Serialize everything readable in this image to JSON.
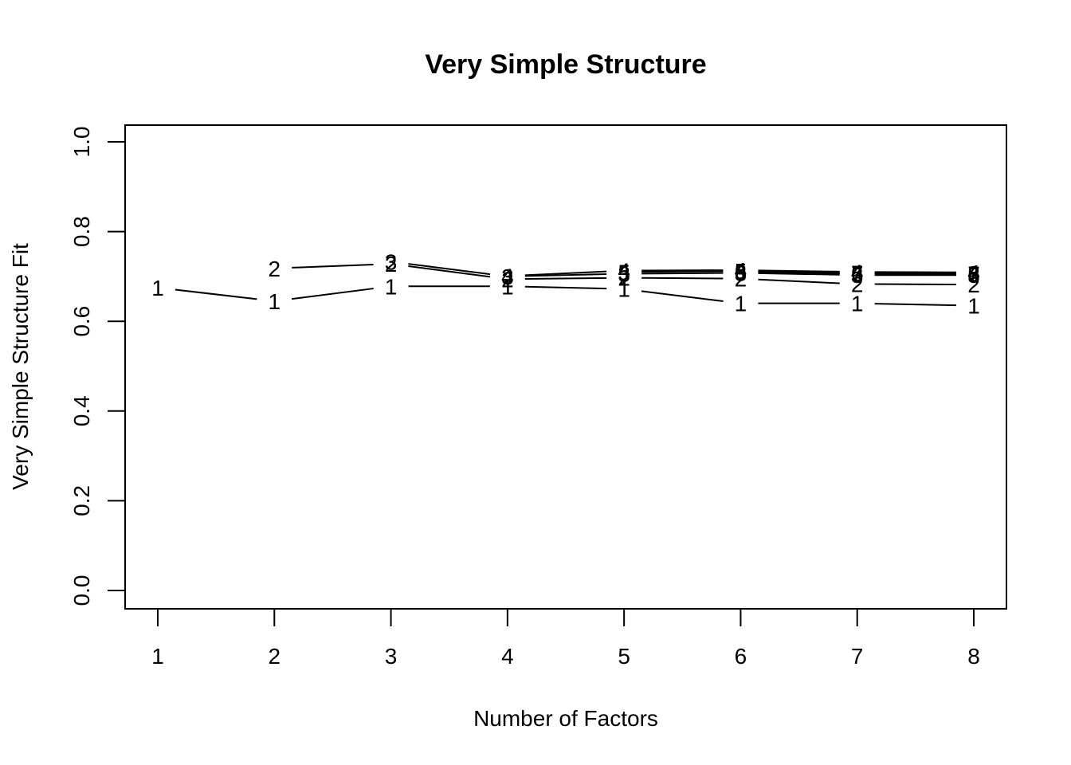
{
  "chart_data": {
    "type": "line",
    "title": "Very Simple Structure",
    "xlabel": "Number of Factors",
    "ylabel": "Very Simple Structure Fit",
    "xlim": [
      1,
      8
    ],
    "ylim": [
      0,
      1
    ],
    "x": [
      1,
      2,
      3,
      4,
      5,
      6,
      7,
      8
    ],
    "x_ticks": [
      "1",
      "2",
      "3",
      "4",
      "5",
      "6",
      "7",
      "8"
    ],
    "y_ticks": [
      "0.0",
      "0.2",
      "0.4",
      "0.6",
      "0.8",
      "1.0"
    ],
    "y_tick_values": [
      0.0,
      0.2,
      0.4,
      0.6,
      0.8,
      1.0
    ],
    "grid": false,
    "series": [
      {
        "marker": "1",
        "x": [
          1,
          2,
          3,
          4,
          5,
          6,
          7,
          8
        ],
        "values": [
          0.675,
          0.645,
          0.678,
          0.678,
          0.672,
          0.64,
          0.64,
          0.635
        ]
      },
      {
        "marker": "2",
        "x": [
          2,
          3,
          4,
          5,
          6,
          7,
          8
        ],
        "values": [
          0.718,
          0.728,
          0.694,
          0.697,
          0.695,
          0.683,
          0.682
        ]
      },
      {
        "marker": "3",
        "x": [
          3,
          4,
          5,
          6,
          7,
          8
        ],
        "values": [
          0.733,
          0.7,
          0.706,
          0.708,
          0.703,
          0.703
        ]
      },
      {
        "marker": "4",
        "x": [
          4,
          5,
          6,
          7,
          8
        ],
        "values": [
          0.701,
          0.713,
          0.714,
          0.71,
          0.709
        ]
      },
      {
        "marker": "5",
        "x": [
          5,
          6,
          7,
          8
        ],
        "values": [
          0.71,
          0.712,
          0.706,
          0.706
        ]
      },
      {
        "marker": "6",
        "x": [
          6,
          7,
          8
        ],
        "values": [
          0.71,
          0.707,
          0.706
        ]
      },
      {
        "marker": "7",
        "x": [
          7,
          8
        ],
        "values": [
          0.708,
          0.706
        ]
      },
      {
        "marker": "8",
        "x": [
          8
        ],
        "values": [
          0.707
        ]
      }
    ]
  }
}
